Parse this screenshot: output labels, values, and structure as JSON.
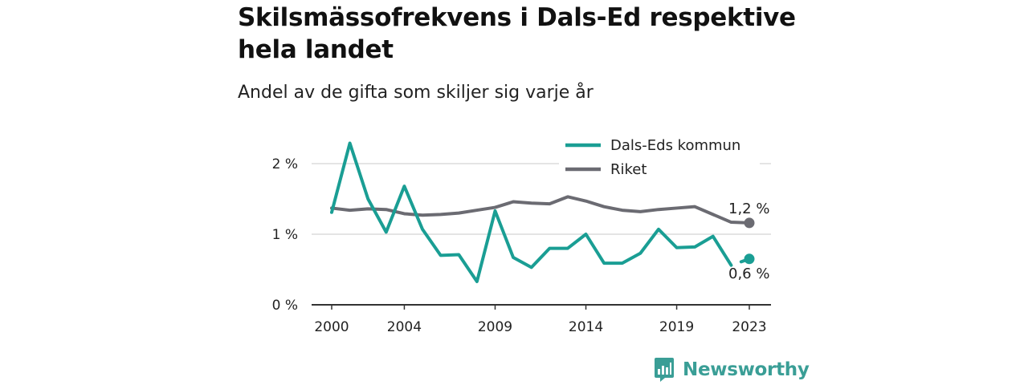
{
  "header": {
    "title": "Skilsmässofrekvens i Dals-Ed respektive hela landet",
    "subtitle": "Andel av de gifta som skiljer sig varje år"
  },
  "brand": {
    "name": "Newsworthy",
    "color": "#3a9e96"
  },
  "chart_data": {
    "type": "line",
    "title": "Skilsmässofrekvens i Dals-Ed respektive hela landet",
    "subtitle": "Andel av de gifta som skiljer sig varje år",
    "xlabel": "",
    "ylabel": "",
    "x": [
      2000,
      2001,
      2002,
      2003,
      2004,
      2005,
      2006,
      2007,
      2008,
      2009,
      2010,
      2011,
      2012,
      2013,
      2014,
      2015,
      2016,
      2017,
      2018,
      2019,
      2020,
      2021,
      2022,
      2023
    ],
    "x_ticks": [
      2000,
      2004,
      2009,
      2014,
      2019,
      2023
    ],
    "x_tick_labels": [
      "2000",
      "2004",
      "2009",
      "2014",
      "2019",
      "2023"
    ],
    "xlim": [
      2000,
      2023
    ],
    "ylim": [
      0,
      2.5
    ],
    "y_ticks": [
      0,
      1,
      2
    ],
    "y_tick_labels": [
      "0 %",
      "1 %",
      "2 %"
    ],
    "grid": true,
    "legend_position": "top-right",
    "series": [
      {
        "name": "Dals-Eds kommun",
        "color": "#1a9e94",
        "values": [
          1.31,
          2.29,
          1.5,
          1.03,
          1.68,
          1.07,
          0.7,
          0.71,
          0.33,
          1.33,
          0.67,
          0.53,
          0.8,
          0.8,
          1.0,
          0.59,
          0.59,
          0.73,
          1.07,
          0.81,
          0.82,
          0.97,
          0.56,
          0.65
        ],
        "gap_before_last": true,
        "end_label": "0,6 %"
      },
      {
        "name": "Riket",
        "color": "#6b6b72",
        "values": [
          1.37,
          1.34,
          1.36,
          1.35,
          1.29,
          1.27,
          1.28,
          1.3,
          1.34,
          1.38,
          1.46,
          1.44,
          1.43,
          1.53,
          1.47,
          1.39,
          1.34,
          1.32,
          1.35,
          1.37,
          1.39,
          1.28,
          1.17,
          1.16
        ],
        "end_label": "1,2 %"
      }
    ]
  }
}
